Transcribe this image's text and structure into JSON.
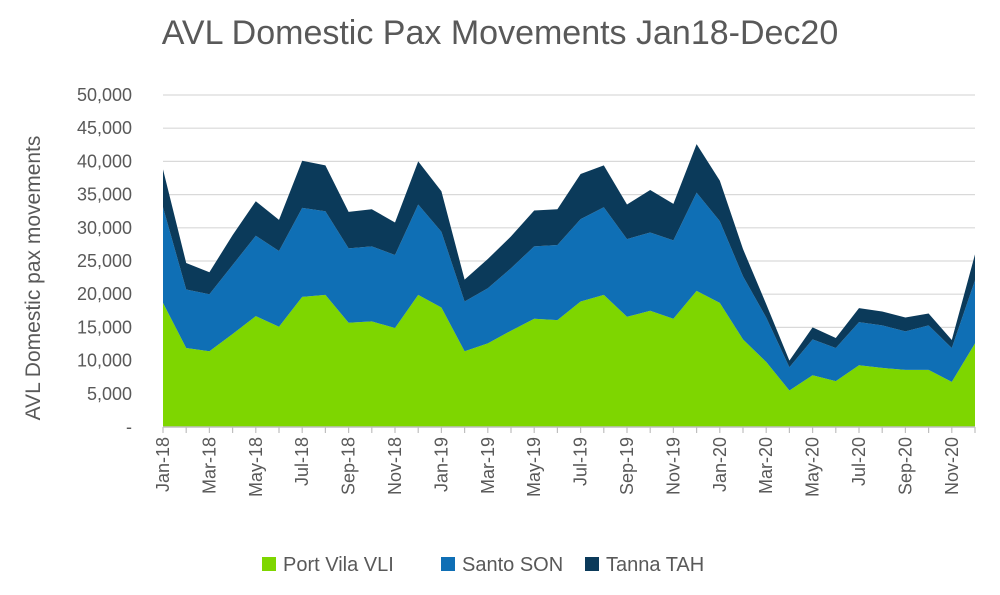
{
  "chart_data": {
    "type": "area",
    "stacked": true,
    "title": "AVL Domestic Pax Movements Jan18-Dec20",
    "xlabel": "",
    "ylabel": "AVL Domestic pax movements",
    "ylim": [
      0,
      50000
    ],
    "yticks": [
      0,
      5000,
      10000,
      15000,
      20000,
      25000,
      30000,
      35000,
      40000,
      45000,
      50000
    ],
    "ytick_labels": [
      "-",
      "5,000",
      "10,000",
      "15,000",
      "20,000",
      "25,000",
      "30,000",
      "35,000",
      "40,000",
      "45,000",
      "50,000"
    ],
    "x": [
      "Jan-18",
      "Feb-18",
      "Mar-18",
      "Apr-18",
      "May-18",
      "Jun-18",
      "Jul-18",
      "Aug-18",
      "Sep-18",
      "Oct-18",
      "Nov-18",
      "Dec-18",
      "Jan-19",
      "Feb-19",
      "Mar-19",
      "Apr-19",
      "May-19",
      "Jun-19",
      "Jul-19",
      "Aug-19",
      "Sep-19",
      "Oct-19",
      "Nov-19",
      "Dec-19",
      "Jan-20",
      "Feb-20",
      "Mar-20",
      "Apr-20",
      "May-20",
      "Jun-20",
      "Jul-20",
      "Aug-20",
      "Sep-20",
      "Oct-20",
      "Nov-20",
      "Dec-20"
    ],
    "xtick_labels": [
      "Jan-18",
      "Mar-18",
      "May-18",
      "Jul-18",
      "Sep-18",
      "Nov-18",
      "Jan-19",
      "Mar-19",
      "May-19",
      "Jul-19",
      "Sep-19",
      "Nov-19",
      "Jan-20",
      "Mar-20",
      "May-20",
      "Jul-20",
      "Sep-20",
      "Nov-20"
    ],
    "grid": true,
    "legend_position": "bottom",
    "series": [
      {
        "name": "Port Vila VLI",
        "color": "#7ED600",
        "values": [
          18700,
          11900,
          11400,
          14000,
          16700,
          15100,
          19600,
          19900,
          15700,
          15900,
          14900,
          19900,
          18000,
          11400,
          12600,
          14500,
          16300,
          16100,
          18900,
          19900,
          16600,
          17500,
          16300,
          20500,
          18700,
          13200,
          9800,
          5500,
          7800,
          6900,
          9300,
          8900,
          8600,
          8600,
          6800,
          12600
        ]
      },
      {
        "name": "Santo SON",
        "color": "#0F6FB5",
        "values": [
          14400,
          8800,
          8600,
          10400,
          12100,
          11400,
          13400,
          12600,
          11200,
          11300,
          11000,
          13600,
          11400,
          7500,
          8300,
          9400,
          10900,
          11300,
          12400,
          13200,
          11700,
          11800,
          11800,
          14800,
          12300,
          9500,
          6700,
          3500,
          5400,
          5000,
          6500,
          6400,
          5800,
          6700,
          5100,
          9500
        ]
      },
      {
        "name": "Tanna TAH",
        "color": "#0B3A5A",
        "values": [
          5700,
          4000,
          3300,
          4500,
          5200,
          4700,
          7100,
          6900,
          5500,
          5600,
          4900,
          6500,
          6100,
          3300,
          4400,
          4800,
          5400,
          5400,
          6800,
          6300,
          5200,
          6400,
          5500,
          7300,
          6100,
          4100,
          2000,
          1000,
          1800,
          1500,
          2100,
          2100,
          2100,
          1800,
          1200,
          3900
        ]
      }
    ]
  }
}
